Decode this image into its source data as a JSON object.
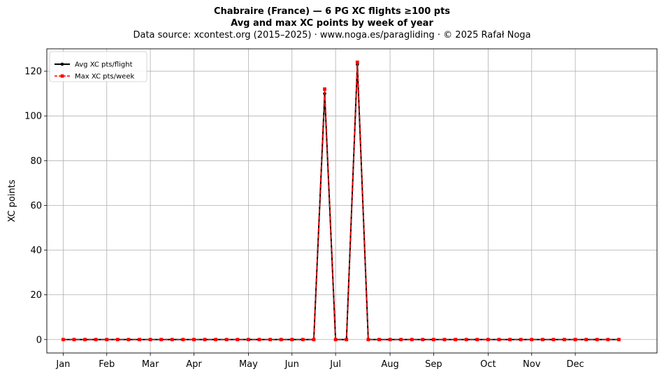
{
  "chart_data": {
    "type": "line",
    "title": "Chabraire (France)  —  6 PG XC flights ≥100 pts",
    "subtitle": "Avg and max XC points by week of year",
    "source_line": "Data source: xcontest.org (2015–2025)  ·  www.noga.es/paragliding  ·  © 2025 Rafał Noga",
    "xlabel": "",
    "ylabel": "XC points",
    "ylim": [
      -6,
      130
    ],
    "xlim": [
      -1.5,
      54.5
    ],
    "yticks": [
      0,
      20,
      40,
      60,
      80,
      100,
      120
    ],
    "x_ticks": [
      {
        "label": "Jan",
        "x": 0
      },
      {
        "label": "Feb",
        "x": 4
      },
      {
        "label": "Mar",
        "x": 8
      },
      {
        "label": "Apr",
        "x": 12
      },
      {
        "label": "May",
        "x": 17
      },
      {
        "label": "Jun",
        "x": 21
      },
      {
        "label": "Jul",
        "x": 25
      },
      {
        "label": "Aug",
        "x": 30
      },
      {
        "label": "Sep",
        "x": 34
      },
      {
        "label": "Oct",
        "x": 39
      },
      {
        "label": "Nov",
        "x": 43
      },
      {
        "label": "Dec",
        "x": 47
      }
    ],
    "grid": true,
    "legend_position": "top-left",
    "x": [
      0,
      1,
      2,
      3,
      4,
      5,
      6,
      7,
      8,
      9,
      10,
      11,
      12,
      13,
      14,
      15,
      16,
      17,
      18,
      19,
      20,
      21,
      22,
      23,
      24,
      25,
      26,
      27,
      28,
      29,
      30,
      31,
      32,
      33,
      34,
      35,
      36,
      37,
      38,
      39,
      40,
      41,
      42,
      43,
      44,
      45,
      46,
      47,
      48,
      49,
      50,
      51
    ],
    "series": [
      {
        "name": "Avg XC pts/flight",
        "color": "#000000",
        "marker": "circle",
        "linestyle": "solid",
        "values": [
          0,
          0,
          0,
          0,
          0,
          0,
          0,
          0,
          0,
          0,
          0,
          0,
          0,
          0,
          0,
          0,
          0,
          0,
          0,
          0,
          0,
          0,
          0,
          0,
          110,
          0,
          0,
          123,
          0,
          0,
          0,
          0,
          0,
          0,
          0,
          0,
          0,
          0,
          0,
          0,
          0,
          0,
          0,
          0,
          0,
          0,
          0,
          0,
          0,
          0,
          0,
          0
        ]
      },
      {
        "name": "Max XC pts/week",
        "color": "#ff0000",
        "marker": "square",
        "linestyle": "dashed",
        "values": [
          0,
          0,
          0,
          0,
          0,
          0,
          0,
          0,
          0,
          0,
          0,
          0,
          0,
          0,
          0,
          0,
          0,
          0,
          0,
          0,
          0,
          0,
          0,
          0,
          112,
          0,
          0,
          124,
          0,
          0,
          0,
          0,
          0,
          0,
          0,
          0,
          0,
          0,
          0,
          0,
          0,
          0,
          0,
          0,
          0,
          0,
          0,
          0,
          0,
          0,
          0,
          0
        ]
      }
    ]
  }
}
